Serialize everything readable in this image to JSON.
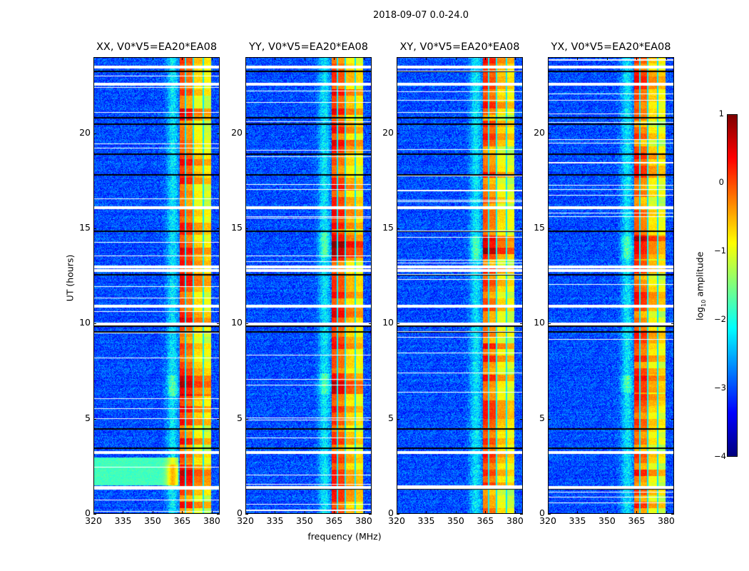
{
  "chart_data": {
    "type": "heatmap",
    "title": "2018-09-07 0.0-24.0",
    "xlabel": "frequency (MHz)",
    "ylabel": "UT (hours)",
    "xlim": [
      320,
      384
    ],
    "ylim": [
      0,
      24
    ],
    "xticks": [
      "320",
      "335",
      "350",
      "365",
      "380"
    ],
    "xtick_values": [
      320,
      335,
      350,
      365,
      380
    ],
    "yticks": [
      "0",
      "5",
      "10",
      "15",
      "20"
    ],
    "ytick_values": [
      0,
      5,
      10,
      15,
      20
    ],
    "colormap": "jet",
    "colorbar": {
      "label_main": "log",
      "label_sub": "10",
      "label_rest": " amplitude",
      "range": [
        -4,
        1
      ],
      "ticks": [
        "1",
        "0",
        "−1",
        "−2",
        "−3",
        "−4"
      ],
      "tick_values": [
        1,
        0,
        -1,
        -2,
        -3,
        -4
      ]
    },
    "panels": [
      {
        "title": "XX, V0*V5=EA20*EA08",
        "band_level": -0.4,
        "strong_bursts": [
          [
            6.2,
            7.3
          ],
          [
            1.5,
            2.6
          ]
        ]
      },
      {
        "title": "YY, V0*V5=EA20*EA08",
        "band_level": -0.3,
        "strong_bursts": [
          [
            13.5,
            14.8
          ],
          [
            6.3,
            7.4
          ]
        ]
      },
      {
        "title": "XY, V0*V5=EA20*EA08",
        "band_level": -0.5,
        "strong_bursts": [
          [
            13.4,
            14.6
          ]
        ]
      },
      {
        "title": "YX, V0*V5=EA20*EA08",
        "band_level": -0.5,
        "strong_bursts": [
          [
            13.4,
            14.6
          ],
          [
            6.4,
            7.3
          ]
        ]
      }
    ],
    "background_level": -3.0,
    "rfi_band_mhz": [
      363.5,
      380
    ],
    "rfi_subbands_mhz": [
      [
        363.5,
        366.5,
        0.5
      ],
      [
        366.8,
        370.2,
        0.3
      ],
      [
        370.5,
        375.5,
        -0.2
      ],
      [
        375.8,
        379.5,
        -0.4
      ]
    ],
    "flagged_hours_white": [
      23.55,
      22.65,
      16.15,
      13.05,
      12.85,
      11.0,
      10.05,
      3.3,
      1.45
    ],
    "flagged_hours_black": [
      23.3,
      20.85,
      20.5,
      18.95,
      17.85,
      14.9,
      12.6,
      9.9,
      9.6,
      4.5,
      3.5,
      1.35
    ]
  }
}
